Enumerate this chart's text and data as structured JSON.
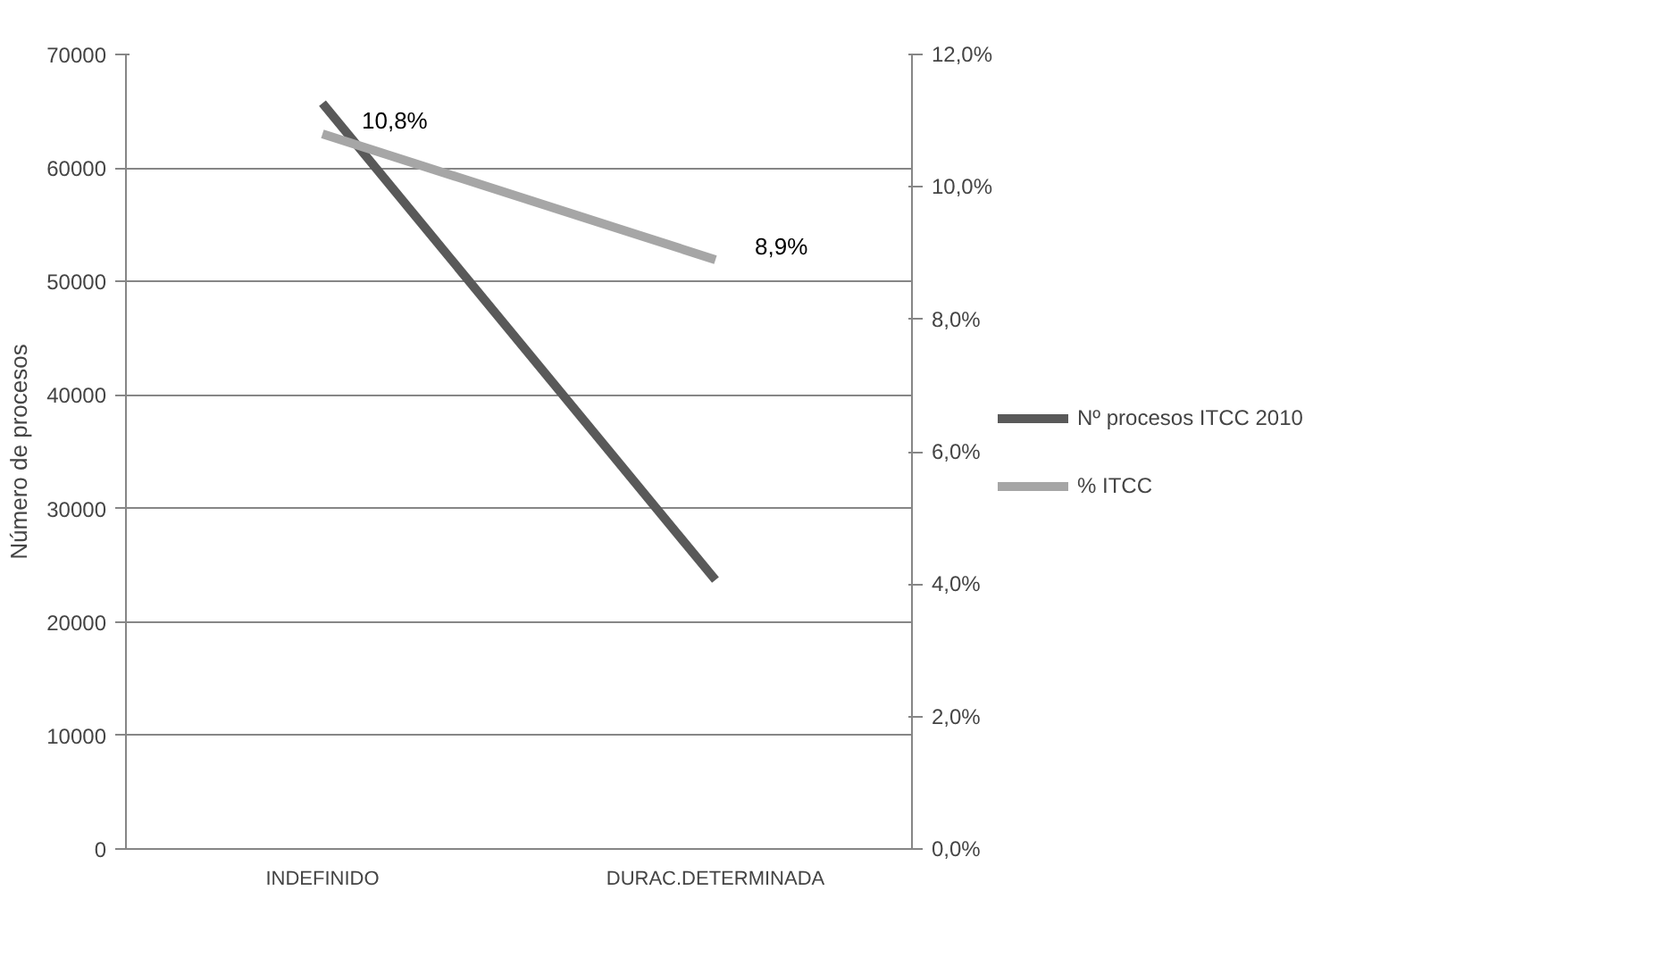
{
  "chart_data": {
    "type": "line",
    "ylabel": "Número de procesos",
    "categories": [
      "INDEFINIDO",
      "DURAC.DETERMINADA"
    ],
    "series": [
      {
        "name": "Nº procesos ITCC 2010",
        "color": "#595959",
        "values": [
          65700,
          23700
        ]
      },
      {
        "name": "% ITCC",
        "color": "#a6a6a6",
        "values": [
          10.8,
          8.9
        ],
        "axis": "y2",
        "value_labels": [
          "10,8%",
          "8,9%"
        ]
      }
    ],
    "ylim": [
      0,
      70000
    ],
    "yticks": [
      0,
      10000,
      20000,
      30000,
      40000,
      50000,
      60000,
      70000
    ],
    "y2lim": [
      0,
      12
    ],
    "y2ticks": [
      {
        "value": 0,
        "label": "0,0%"
      },
      {
        "value": 2,
        "label": "2,0%"
      },
      {
        "value": 4,
        "label": "4,0%"
      },
      {
        "value": 6,
        "label": "6,0%"
      },
      {
        "value": 8,
        "label": "8,0%"
      },
      {
        "value": 10,
        "label": "10,0%"
      },
      {
        "value": 12,
        "label": "12,0%"
      }
    ],
    "grid": "y",
    "legend": "right",
    "marker": "none",
    "line_style": "solid"
  }
}
